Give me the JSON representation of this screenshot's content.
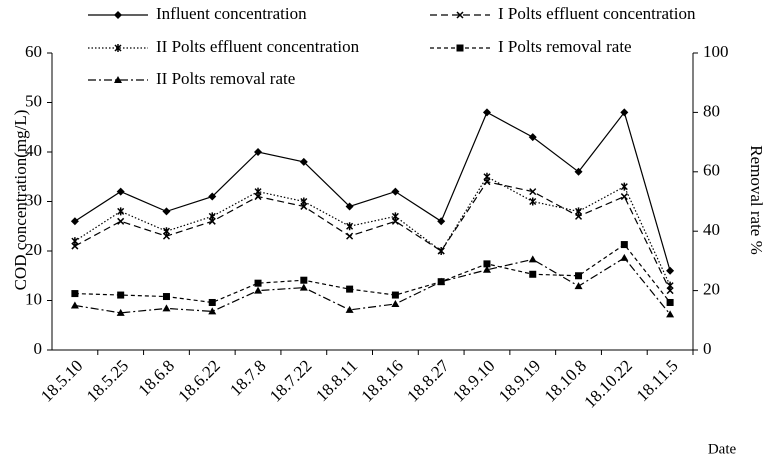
{
  "chart_data": {
    "type": "line",
    "categories": [
      "18.5.10",
      "18.5.25",
      "18.6.8",
      "18.6.22",
      "18.7.8",
      "18.7.22",
      "18.8.11",
      "18.8.16",
      "18.8.27",
      "18.9.10",
      "18.9.19",
      "18.10.8",
      "18.10.22",
      "18.11.5"
    ],
    "y_label": "COD concentration(mg/L)",
    "y2_label": "Removal rate %",
    "x_label": "Date",
    "ylim": [
      0,
      60
    ],
    "yticks": [
      0,
      10,
      20,
      30,
      40,
      50,
      60
    ],
    "y2lim": [
      0,
      100
    ],
    "y2ticks": [
      0,
      20,
      40,
      60,
      80,
      100
    ],
    "series": [
      {
        "name": "Influent concentration",
        "color": "#000000",
        "dash": "none",
        "marker": "diamond",
        "values": [
          26,
          32,
          28,
          31,
          40,
          38,
          29,
          32,
          26,
          48,
          43,
          36,
          48,
          16
        ]
      },
      {
        "name": "I Polts effluent concentration",
        "color": "#000000",
        "dash": "7 4",
        "marker": "cross",
        "values": [
          21,
          26,
          23,
          26,
          31,
          29,
          23,
          26,
          20,
          34,
          32,
          27,
          31,
          12
        ]
      },
      {
        "name": "II Polts effluent concentration",
        "color": "#000000",
        "dash": "1.5 2",
        "marker": "star",
        "values": [
          22,
          28,
          24,
          27,
          32,
          30,
          25,
          27,
          20,
          35,
          30,
          28,
          33,
          13
        ]
      },
      {
        "name": "I Polts removal rate",
        "color": "#000000",
        "dash": "4 3",
        "marker": "square",
        "axis": "y2",
        "values": [
          19,
          18.5,
          18,
          16,
          22.5,
          23.5,
          20.5,
          18.5,
          23,
          29,
          25.5,
          25,
          35.5,
          16
        ]
      },
      {
        "name": "II Polts removal rate",
        "color": "#000000",
        "dash": "8 3 2 3",
        "marker": "triangle",
        "axis": "y2",
        "values": [
          15,
          12.5,
          14,
          13,
          20,
          21,
          13.5,
          15.5,
          23,
          27,
          30.5,
          21.5,
          31,
          12
        ]
      }
    ]
  }
}
